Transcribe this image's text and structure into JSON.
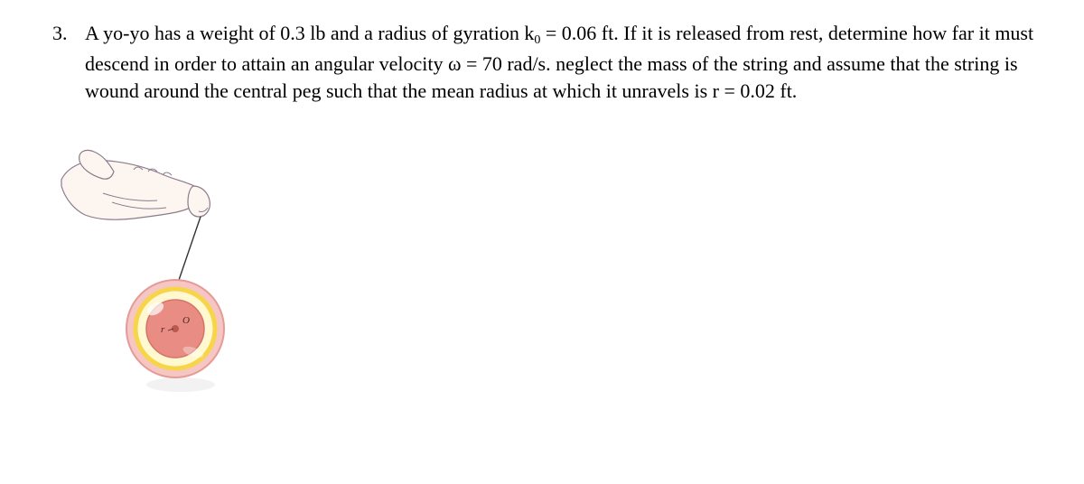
{
  "problem": {
    "number": "3.",
    "text_prefix": "A yo-yo has a weight of 0.3 lb and a radius of gyration k",
    "text_sub1": "0",
    "text_mid1": " = 0.06 ft. If it is released from rest, determine how far it must descend in order to attain an angular velocity ω = 70 rad/s. neglect the mass of the string and assume that the string is wound around the central peg such that the mean radius at which it unravels is r = 0.02 ft."
  },
  "illustration": {
    "hand": {
      "skin_fill": "#fdf6f0",
      "skin_stroke": "#8c7a8c",
      "stroke_width": 1.2
    },
    "string": {
      "color": "#333333",
      "width": 1.4
    },
    "yoyo": {
      "outer_fill": "#f6c6c4",
      "outer_stroke": "#e59a96",
      "ring_fill": "#fff8d0",
      "ring_stroke": "#f6d548",
      "inner_fill": "#e98d84",
      "inner_stroke": "#d4736a",
      "hub_fill": "#b95a52",
      "highlight_fill": "#ffffff",
      "label_r": "r",
      "label_O": "O",
      "label_color": "#402a20",
      "label_fontsize": 11
    }
  }
}
